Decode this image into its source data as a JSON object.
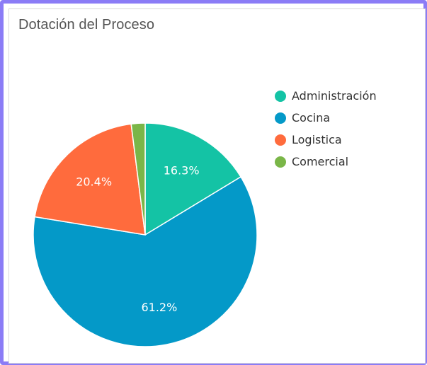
{
  "chart_data": {
    "type": "pie",
    "title": "Dotación del Proceso",
    "categories": [
      "Administración",
      "Cocina",
      "Logistica",
      "Comercial"
    ],
    "values": [
      16.3,
      61.2,
      20.4,
      2.0
    ],
    "labels": [
      "16.3%",
      "61.2%",
      "20.4%",
      ""
    ],
    "colors": [
      "#14C3A5",
      "#0499C8",
      "#FF6B3D",
      "#7AB648"
    ],
    "legend_position": "right",
    "start_angle": "12 o'clock",
    "direction": "clockwise"
  }
}
